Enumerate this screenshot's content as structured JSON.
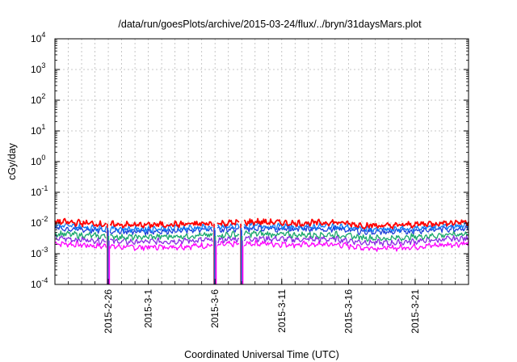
{
  "chart_data": {
    "type": "line",
    "title": "/data/run/goesPlots/archive/2015-03-24/flux/../bryn/31daysMars.plot",
    "xlabel": "Coordinated Universal Time (UTC)",
    "ylabel": "cGy/day",
    "y_scale": "log",
    "ylim": [
      0.0001,
      10000
    ],
    "y_tick_values": [
      0.0001,
      0.001,
      0.01,
      0.1,
      1,
      10,
      100,
      1000,
      10000
    ],
    "y_tick_labels": [
      {
        "base": "10",
        "exp": "-4"
      },
      {
        "base": "10",
        "exp": "-3"
      },
      {
        "base": "10",
        "exp": "-2"
      },
      {
        "base": "10",
        "exp": "-1"
      },
      {
        "base": "10",
        "exp": "0"
      },
      {
        "base": "10",
        "exp": "1"
      },
      {
        "base": "10",
        "exp": "2"
      },
      {
        "base": "10",
        "exp": "3"
      },
      {
        "base": "10",
        "exp": "4"
      }
    ],
    "xlim": [
      "2015-02-22",
      "2015-03-25"
    ],
    "x_tick_labels": [
      "2015-2-26",
      "2015-3-1",
      "2015-3-6",
      "2015-3-11",
      "2015-3-16",
      "2015-3-21"
    ],
    "x_tick_dates": [
      "2015-02-26",
      "2015-03-01",
      "2015-03-06",
      "2015-03-11",
      "2015-03-16",
      "2015-03-21"
    ],
    "grid": true,
    "legend": "none",
    "gaps": [
      {
        "date": "2015-02-26",
        "min_value": 0.0001
      },
      {
        "date": "2015-03-06",
        "min_value": 0.0001
      },
      {
        "date": "2015-03-08",
        "min_value": 0.0001
      }
    ],
    "series": [
      {
        "color": "#ff0000",
        "x": [
          "2015-02-22",
          "2015-02-25",
          "2015-02-28",
          "2015-03-03",
          "2015-03-06",
          "2015-03-09",
          "2015-03-12",
          "2015-03-15",
          "2015-03-17",
          "2015-03-19",
          "2015-03-22",
          "2015-03-25"
        ],
        "values": [
          0.011,
          0.0095,
          0.0085,
          0.009,
          0.0095,
          0.011,
          0.0098,
          0.0105,
          0.0085,
          0.008,
          0.0095,
          0.011
        ]
      },
      {
        "color": "#0a7af5",
        "x": [
          "2015-02-22",
          "2015-02-25",
          "2015-02-28",
          "2015-03-03",
          "2015-03-06",
          "2015-03-09",
          "2015-03-12",
          "2015-03-15",
          "2015-03-17",
          "2015-03-19",
          "2015-03-22",
          "2015-03-25"
        ],
        "values": [
          0.0082,
          0.007,
          0.0063,
          0.0068,
          0.0072,
          0.0082,
          0.0075,
          0.0078,
          0.0065,
          0.006,
          0.0072,
          0.0085
        ]
      },
      {
        "color": "#1e3fd8",
        "x": [
          "2015-02-22",
          "2015-02-25",
          "2015-02-28",
          "2015-03-03",
          "2015-03-06",
          "2015-03-09",
          "2015-03-12",
          "2015-03-15",
          "2015-03-17",
          "2015-03-19",
          "2015-03-22",
          "2015-03-25"
        ],
        "values": [
          0.0068,
          0.0058,
          0.0052,
          0.0056,
          0.006,
          0.0068,
          0.0062,
          0.0064,
          0.0054,
          0.005,
          0.006,
          0.007
        ]
      },
      {
        "color": "#1aa86b",
        "x": [
          "2015-02-22",
          "2015-02-25",
          "2015-02-28",
          "2015-03-03",
          "2015-03-06",
          "2015-03-09",
          "2015-03-12",
          "2015-03-15",
          "2015-03-17",
          "2015-03-19",
          "2015-03-22",
          "2015-03-25"
        ],
        "values": [
          0.0045,
          0.0038,
          0.0034,
          0.0037,
          0.004,
          0.0045,
          0.0041,
          0.0042,
          0.0034,
          0.0031,
          0.0038,
          0.0045
        ]
      },
      {
        "color": "#8a2be2",
        "x": [
          "2015-02-22",
          "2015-02-25",
          "2015-02-28",
          "2015-03-03",
          "2015-03-06",
          "2015-03-09",
          "2015-03-12",
          "2015-03-15",
          "2015-03-17",
          "2015-03-19",
          "2015-03-22",
          "2015-03-25"
        ],
        "values": [
          0.0032,
          0.0027,
          0.0024,
          0.0026,
          0.0028,
          0.0032,
          0.0029,
          0.003,
          0.0024,
          0.0022,
          0.0027,
          0.0032
        ]
      },
      {
        "color": "#ff00ff",
        "x": [
          "2015-02-22",
          "2015-02-25",
          "2015-02-28",
          "2015-03-03",
          "2015-03-06",
          "2015-03-09",
          "2015-03-12",
          "2015-03-15",
          "2015-03-17",
          "2015-03-19",
          "2015-03-22",
          "2015-03-25"
        ],
        "values": [
          0.0022,
          0.0018,
          0.0016,
          0.0017,
          0.0019,
          0.0022,
          0.002,
          0.002,
          0.0016,
          0.0015,
          0.0018,
          0.0022
        ]
      }
    ]
  }
}
